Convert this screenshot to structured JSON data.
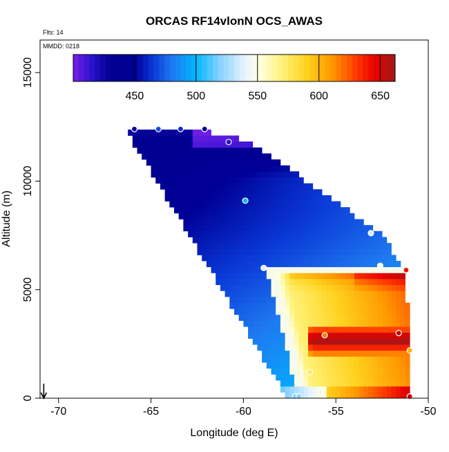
{
  "chart_data": {
    "type": "heatmap",
    "title": "ORCAS RF14vlonN OCS_AWAS",
    "xlabel": "Longitude (deg E)",
    "ylabel": "Altitude (m)",
    "xlim": [
      -71,
      -50
    ],
    "ylim": [
      0,
      16500
    ],
    "x_ticks": [
      -70,
      -65,
      -60,
      -55,
      -50
    ],
    "x_tick_labels": [
      "-70",
      "-65",
      "-60",
      "-55",
      "-50"
    ],
    "y_ticks": [
      0,
      5000,
      10000,
      15000
    ],
    "y_tick_labels": [
      "0",
      "5000",
      "10000",
      "15000"
    ],
    "annotations": {
      "flights": "Flts: 14",
      "date": "MMDD: 0218"
    },
    "colorbar": {
      "range": [
        400,
        662
      ],
      "ticks": [
        450,
        500,
        550,
        600,
        650
      ],
      "tick_labels": [
        "450",
        "500",
        "550",
        "600",
        "650"
      ],
      "colors": [
        {
          "v": 400,
          "c": "#7a1fe8"
        },
        {
          "v": 415,
          "c": "#2a12cc"
        },
        {
          "v": 430,
          "c": "#00008f"
        },
        {
          "v": 450,
          "c": "#000097"
        },
        {
          "v": 465,
          "c": "#0a38d6"
        },
        {
          "v": 480,
          "c": "#1e78f0"
        },
        {
          "v": 500,
          "c": "#00b6ff"
        },
        {
          "v": 520,
          "c": "#8cd2ff"
        },
        {
          "v": 540,
          "c": "#eaf4ff"
        },
        {
          "v": 552,
          "c": "#ffffe0"
        },
        {
          "v": 570,
          "c": "#fff27a"
        },
        {
          "v": 590,
          "c": "#ffd21e"
        },
        {
          "v": 610,
          "c": "#ff9a00"
        },
        {
          "v": 630,
          "c": "#ff3c00"
        },
        {
          "v": 645,
          "c": "#e80000"
        },
        {
          "v": 662,
          "c": "#a01818"
        }
      ]
    },
    "field": {
      "cell_width_deg": 0.25,
      "cell_height_m": 275,
      "domain": {
        "left_edge": [
          [
            0,
            -57.6
          ],
          [
            1500,
            -58.7
          ],
          [
            12400,
            -66.4
          ]
        ],
        "right_edge": [
          [
            0,
            -50.9
          ],
          [
            5900,
            -51.2
          ],
          [
            7600,
            -52.6
          ],
          [
            11800,
            -59.6
          ],
          [
            12400,
            -62.4
          ]
        ]
      },
      "plume": {
        "base_top_m": 5900,
        "base_bottom_m": 600,
        "left_top_lon": -58.2,
        "left_bottom_lon": -56.7,
        "core_bottom_m": 2000,
        "core_top_m": 3400,
        "core_left_lon": -56.6
      }
    },
    "observations": [
      {
        "lon": -65.9,
        "alt": 12400,
        "value": 452
      },
      {
        "lon": -64.6,
        "alt": 12400,
        "value": 470
      },
      {
        "lon": -63.4,
        "alt": 12400,
        "value": 462
      },
      {
        "lon": -62.1,
        "alt": 12400,
        "value": 438
      },
      {
        "lon": -60.8,
        "alt": 11800,
        "value": 415
      },
      {
        "lon": -59.9,
        "alt": 9100,
        "value": 502
      },
      {
        "lon": -58.9,
        "alt": 6000,
        "value": 538
      },
      {
        "lon": -53.1,
        "alt": 7600,
        "value": 535
      },
      {
        "lon": -52.6,
        "alt": 6100,
        "value": 545
      },
      {
        "lon": -51.2,
        "alt": 5900,
        "value": 640
      },
      {
        "lon": -55.6,
        "alt": 2900,
        "value": 615
      },
      {
        "lon": -51.6,
        "alt": 3000,
        "value": 655
      },
      {
        "lon": -56.4,
        "alt": 1200,
        "value": 575
      },
      {
        "lon": -57.2,
        "alt": 80,
        "value": 520
      },
      {
        "lon": -57.0,
        "alt": 80,
        "value": 520
      },
      {
        "lon": -51.0,
        "alt": 80,
        "value": 652
      },
      {
        "lon": -51.0,
        "alt": 2200,
        "value": 600
      }
    ],
    "arrow": {
      "lon": -70.8,
      "direction": "down"
    }
  }
}
